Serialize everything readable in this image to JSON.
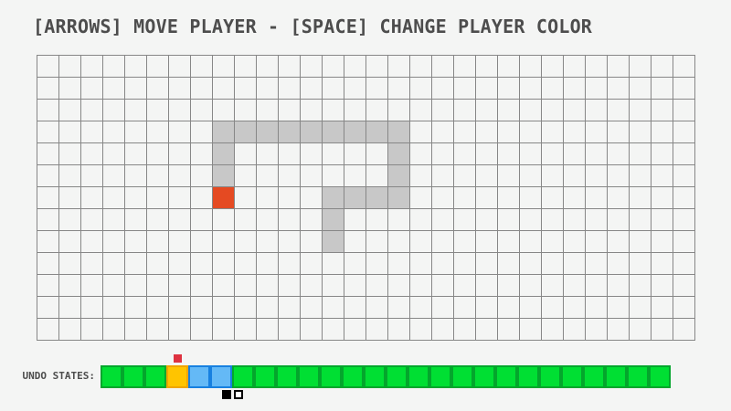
{
  "title": "[ARROWS] MOVE PLAYER - [SPACE] CHANGE PLAYER COLOR",
  "colors": {
    "background": "#f4f5f4",
    "title_text": "#4d4d4d",
    "grid_line": "#878787",
    "trail": "#c8c8c8",
    "player": "#e54a22",
    "undo_green_fill": "#00df33",
    "undo_green_border": "#04a62c",
    "undo_orange_fill": "#ffc400",
    "undo_orange_border": "#f0a500",
    "undo_blue_fill": "#64b9f6",
    "undo_blue_border": "#1780e0",
    "marker_red": "#de3240",
    "swatch_black": "#000000",
    "swatch_white": "#ffffff"
  },
  "grid": {
    "columns": 30,
    "rows": 13,
    "trail_cells": [
      [
        8,
        3
      ],
      [
        9,
        3
      ],
      [
        10,
        3
      ],
      [
        11,
        3
      ],
      [
        12,
        3
      ],
      [
        13,
        3
      ],
      [
        14,
        3
      ],
      [
        15,
        3
      ],
      [
        16,
        3
      ],
      [
        8,
        4
      ],
      [
        16,
        4
      ],
      [
        8,
        5
      ],
      [
        16,
        5
      ],
      [
        13,
        6
      ],
      [
        14,
        6
      ],
      [
        15,
        6
      ],
      [
        16,
        6
      ],
      [
        13,
        7
      ],
      [
        13,
        8
      ]
    ],
    "player_cell": [
      8,
      6
    ]
  },
  "undo_bar": {
    "label": "UNDO STATES:",
    "cells": [
      "green",
      "green",
      "green",
      "orange",
      "blue",
      "blue",
      "green",
      "green",
      "green",
      "green",
      "green",
      "green",
      "green",
      "green",
      "green",
      "green",
      "green",
      "green",
      "green",
      "green",
      "green",
      "green",
      "green",
      "green",
      "green",
      "green"
    ],
    "marker_index": 3
  },
  "color_swatches": [
    {
      "name": "black",
      "style": "filled"
    },
    {
      "name": "white",
      "style": "outlined"
    }
  ]
}
